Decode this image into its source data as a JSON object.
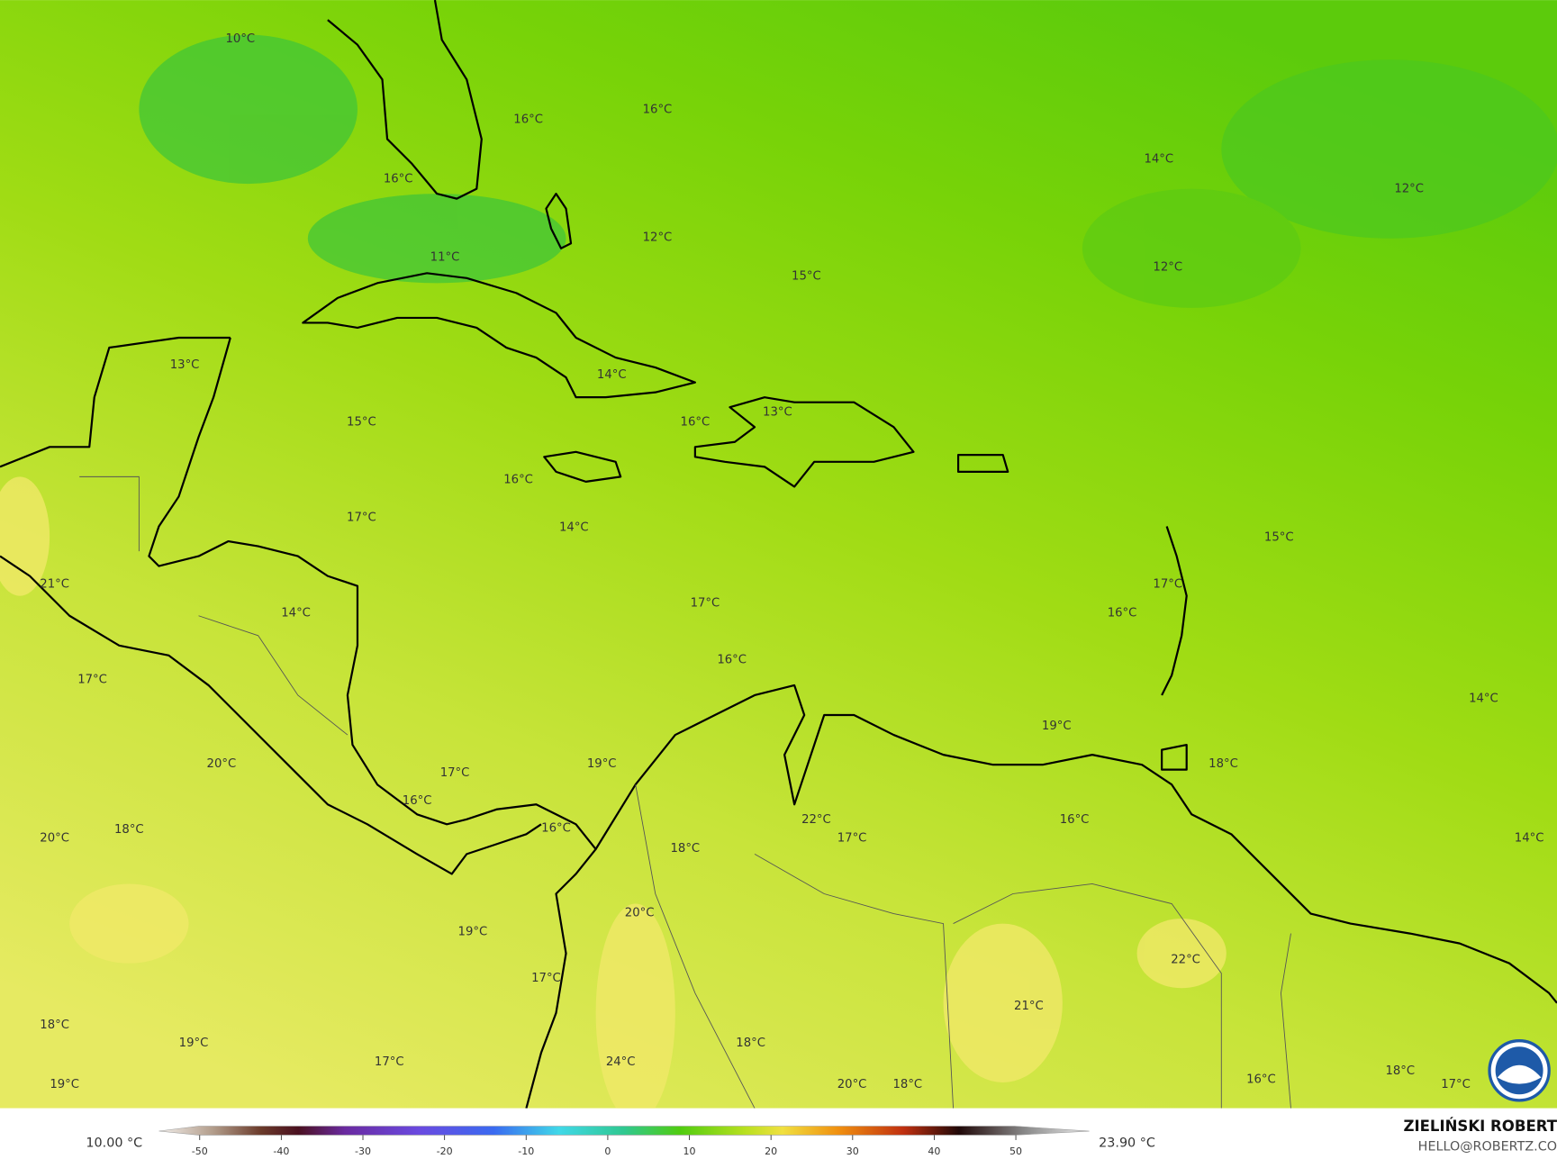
{
  "map_labels": [
    "10°C",
    "16°C",
    "16°C",
    "16°C",
    "14°C",
    "12°C",
    "12°C",
    "11°C",
    "12°C",
    "15°C",
    "13°C",
    "14°C",
    "13°C",
    "15°C",
    "16°C",
    "16°C",
    "17°C",
    "14°C",
    "15°C",
    "21°C",
    "17°C",
    "17°C",
    "14°C",
    "16°C",
    "16°C",
    "17°C",
    "14°C",
    "19°C",
    "20°C",
    "19°C",
    "18°C",
    "17°C",
    "16°C",
    "22°C",
    "16°C",
    "18°C",
    "16°C",
    "20°C",
    "17°C",
    "14°C",
    "18°C",
    "20°C",
    "19°C",
    "22°C",
    "17°C",
    "21°C",
    "18°C",
    "19°C",
    "18°C",
    "17°C",
    "24°C",
    "16°C",
    "18°C",
    "17°C",
    "19°C",
    "20°C",
    "18°C"
  ],
  "colorbar": {
    "min_label": "10.00 °C",
    "max_label": "23.90 °C",
    "lim": [
      -55,
      59
    ],
    "ticks": [
      -50,
      -40,
      -30,
      -20,
      -10,
      0,
      10,
      20,
      30,
      40,
      50
    ]
  },
  "credit": {
    "name": "ZIELIŃSKI ROBERT",
    "email": "HELLO@ROBERTZ.CO"
  }
}
